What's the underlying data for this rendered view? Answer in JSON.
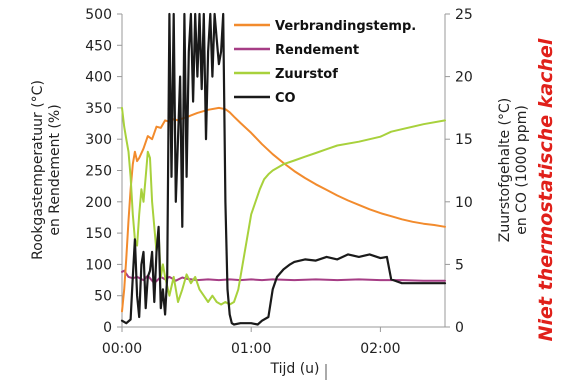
{
  "chart_data": {
    "type": "line",
    "side_title": "Niet thermostatische kachel",
    "xlabel": "Tijd (u)",
    "ylabel_left": [
      "Rookgastemperatuur (°C)",
      "en Rendement (%)"
    ],
    "ylabel_right": [
      "Zuurstofgehalte (°C)",
      "en CO (1000 ppm)"
    ],
    "x_ticks": [
      "00:00",
      "01:00",
      "02:00"
    ],
    "x_tick_values": [
      0,
      60,
      120
    ],
    "xlim": [
      0,
      150
    ],
    "y_left_ticks": [
      0,
      50,
      100,
      150,
      200,
      250,
      300,
      350,
      400,
      450,
      500
    ],
    "y_left_lim": [
      0,
      500
    ],
    "y_right_ticks": [
      0,
      5,
      10,
      15,
      20,
      25
    ],
    "y_right_lim": [
      0,
      25
    ],
    "grid": false,
    "legend_position": "top-right (inside)",
    "series": [
      {
        "name": "Verbrandingstemp.",
        "axis": "left",
        "color": "#f28b2d",
        "x": [
          0,
          1,
          2,
          3,
          4,
          5,
          6,
          7,
          8,
          10,
          12,
          14,
          15,
          16,
          18,
          20,
          22,
          24,
          26,
          28,
          30,
          32,
          35,
          40,
          45,
          48,
          50,
          52,
          55,
          60,
          65,
          70,
          75,
          80,
          85,
          90,
          95,
          100,
          105,
          110,
          115,
          120,
          125,
          130,
          135,
          140,
          145,
          150
        ],
        "y": [
          25,
          60,
          110,
          170,
          220,
          260,
          280,
          265,
          270,
          285,
          305,
          300,
          310,
          320,
          318,
          330,
          328,
          332,
          330,
          333,
          335,
          338,
          342,
          347,
          350,
          348,
          343,
          336,
          326,
          310,
          292,
          276,
          262,
          249,
          238,
          228,
          219,
          210,
          202,
          195,
          188,
          182,
          177,
          172,
          168,
          165,
          163,
          160
        ]
      },
      {
        "name": "Rendement",
        "axis": "left",
        "color": "#a63d85",
        "x": [
          0,
          1,
          2,
          3,
          5,
          7,
          10,
          12,
          15,
          18,
          20,
          22,
          25,
          28,
          30,
          35,
          40,
          45,
          50,
          55,
          60,
          65,
          70,
          80,
          90,
          100,
          110,
          120,
          130,
          140,
          150
        ],
        "y": [
          88,
          90,
          85,
          80,
          78,
          80,
          75,
          82,
          70,
          80,
          76,
          80,
          74,
          79,
          77,
          75,
          76,
          75,
          76,
          75,
          76,
          75,
          76,
          75,
          76,
          75,
          76,
          75,
          75,
          74,
          74
        ]
      },
      {
        "name": "Zuurstof",
        "axis": "right",
        "color": "#a8d13c",
        "x": [
          0,
          1,
          2,
          3,
          4,
          5,
          6,
          7,
          8,
          9,
          10,
          11,
          12,
          13,
          14,
          15,
          16,
          17,
          18,
          19,
          20,
          22,
          24,
          26,
          28,
          30,
          32,
          34,
          36,
          38,
          40,
          42,
          44,
          46,
          48,
          50,
          52,
          54,
          56,
          58,
          60,
          62,
          64,
          66,
          68,
          70,
          75,
          80,
          85,
          90,
          95,
          100,
          110,
          120,
          125,
          130,
          140,
          150
        ],
        "y": [
          17.5,
          16,
          15,
          14,
          12,
          9,
          7,
          6.5,
          9,
          11,
          10,
          12,
          14,
          13.5,
          10,
          8,
          6,
          7.5,
          4,
          5,
          4,
          2.5,
          4,
          2,
          3,
          4.2,
          3.5,
          4,
          3,
          2.5,
          2,
          2.5,
          2,
          1.8,
          2,
          1.8,
          2,
          3,
          5,
          7,
          9,
          10,
          11,
          11.8,
          12.2,
          12.5,
          13,
          13.3,
          13.6,
          13.9,
          14.2,
          14.5,
          14.8,
          15.2,
          15.6,
          15.8,
          16.2,
          16.5
        ]
      },
      {
        "name": "CO",
        "axis": "right",
        "color": "#1a1a1a",
        "x": [
          0,
          2,
          4,
          5,
          6,
          7,
          8,
          9,
          10,
          11,
          12,
          13,
          14,
          15,
          16,
          17,
          18,
          19,
          20,
          21,
          22,
          23,
          24,
          25,
          26,
          27,
          28,
          29,
          30,
          31,
          32,
          33,
          34,
          35,
          36,
          37,
          38,
          39,
          40,
          41,
          42,
          43,
          44,
          45,
          46,
          47,
          48,
          49,
          50,
          51,
          52,
          55,
          60,
          63,
          65,
          68,
          70,
          72,
          75,
          78,
          80,
          85,
          90,
          95,
          100,
          105,
          110,
          115,
          120,
          123,
          125,
          130,
          140,
          150
        ],
        "y": [
          0.5,
          0.3,
          0.6,
          4,
          7,
          2.5,
          0.8,
          5,
          6,
          1.5,
          4,
          4.5,
          6,
          2,
          6,
          8,
          1.5,
          3,
          1,
          4,
          25,
          12,
          25,
          10,
          15,
          20,
          8,
          25,
          12,
          22,
          25,
          18,
          25,
          20,
          25,
          19,
          25,
          15,
          22,
          25,
          20,
          25,
          23,
          21,
          22,
          25,
          10,
          3,
          1,
          0.3,
          0.2,
          0.3,
          0.3,
          0.2,
          0.5,
          0.8,
          3,
          4,
          4.6,
          5,
          5.2,
          5.4,
          5.3,
          5.6,
          5.4,
          5.8,
          5.6,
          5.8,
          5.5,
          5.6,
          3.8,
          3.5,
          3.5,
          3.5
        ]
      }
    ]
  }
}
